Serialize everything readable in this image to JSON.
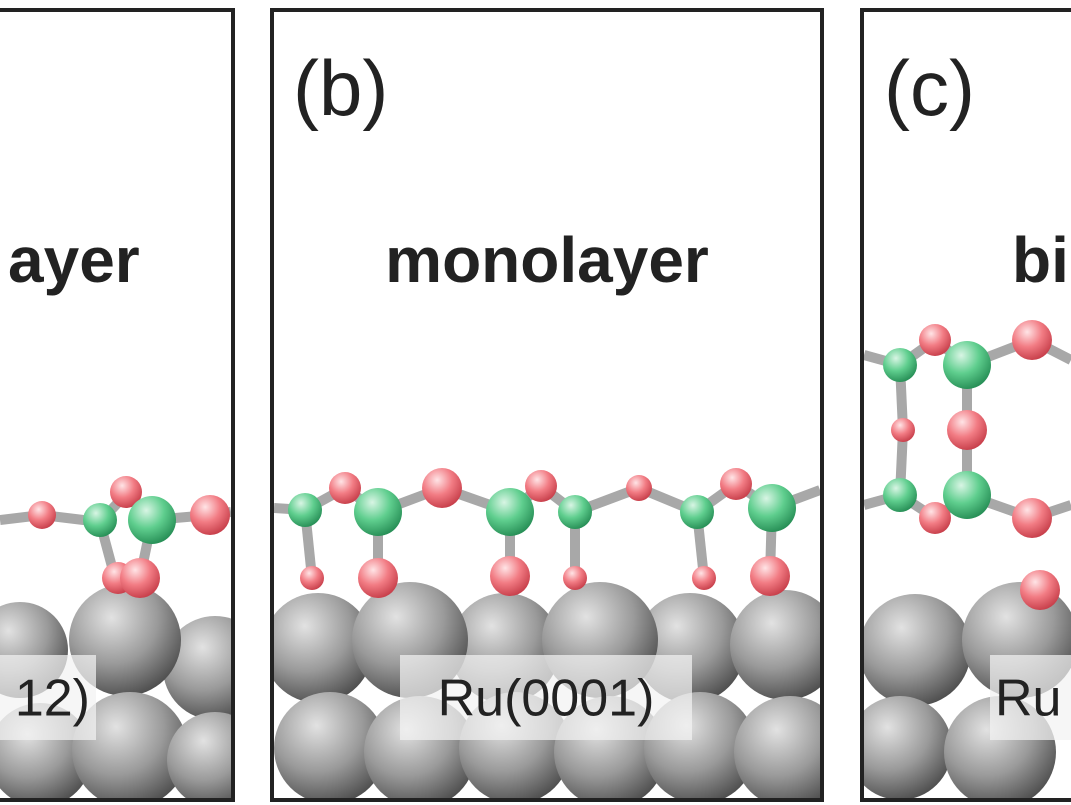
{
  "panels": [
    {
      "heading": "ayer",
      "substrate": "12)"
    },
    {
      "label": "(b)",
      "heading": "monolayer",
      "substrate": "Ru(0001)"
    },
    {
      "label": "(c)",
      "heading": "bi",
      "substrate": "Ru"
    }
  ]
}
